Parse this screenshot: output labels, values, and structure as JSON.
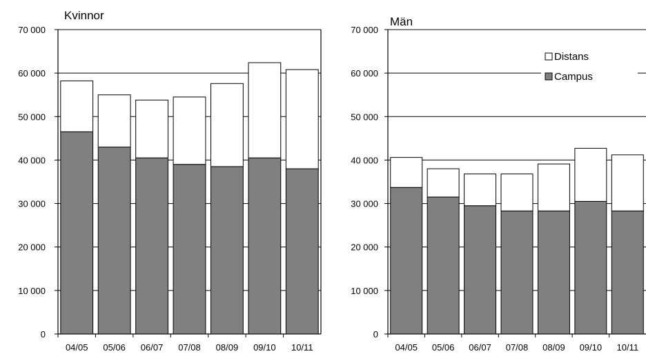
{
  "chart_data": [
    {
      "type": "bar",
      "stacked": true,
      "title": "Kvinnor",
      "categories": [
        "04/05",
        "05/06",
        "06/07",
        "07/08",
        "08/09",
        "09/10",
        "10/11"
      ],
      "series": [
        {
          "name": "Campus",
          "color": "#808080",
          "values": [
            46500,
            43000,
            40500,
            39000,
            38500,
            40500,
            38000
          ]
        },
        {
          "name": "Distans",
          "color": "#ffffff",
          "values": [
            11700,
            12000,
            13300,
            15500,
            19100,
            21900,
            22800
          ]
        }
      ],
      "ylim": [
        0,
        70000
      ],
      "yticks": [
        "0",
        "10 000",
        "20 000",
        "30 000",
        "40 000",
        "50 000",
        "60 000",
        "70 000"
      ],
      "ytick_values": [
        0,
        10000,
        20000,
        30000,
        40000,
        50000,
        60000,
        70000
      ],
      "grid": true,
      "legend": "none"
    },
    {
      "type": "bar",
      "stacked": true,
      "title": "Män",
      "categories": [
        "04/05",
        "05/06",
        "06/07",
        "07/08",
        "08/09",
        "09/10",
        "10/11"
      ],
      "series": [
        {
          "name": "Campus",
          "color": "#808080",
          "values": [
            33700,
            31500,
            29500,
            28300,
            28300,
            30500,
            28300
          ]
        },
        {
          "name": "Distans",
          "color": "#ffffff",
          "values": [
            6900,
            6500,
            7300,
            8500,
            10800,
            12200,
            12900
          ]
        }
      ],
      "ylim": [
        0,
        70000
      ],
      "yticks": [
        "0",
        "10 000",
        "20 000",
        "30 000",
        "40 000",
        "50 000",
        "60 000",
        "70 000"
      ],
      "ytick_values": [
        0,
        10000,
        20000,
        30000,
        40000,
        50000,
        60000,
        70000
      ],
      "grid": true,
      "legend": "top-right",
      "legend_entries": [
        "Distans",
        "Campus"
      ]
    }
  ]
}
